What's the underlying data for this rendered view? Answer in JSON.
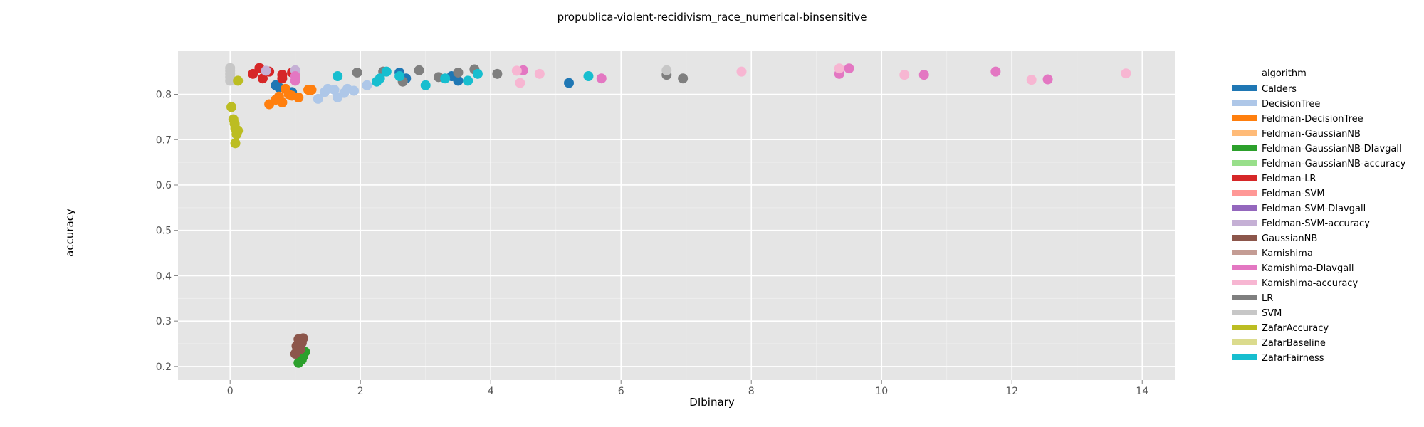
{
  "chart_data": {
    "type": "scatter",
    "title": "propublica-violent-recidivism_race_numerical-binsensitive",
    "xlabel": "DIbinary",
    "ylabel": "accuracy",
    "xlim": [
      -0.8,
      14.5
    ],
    "ylim": [
      0.17,
      0.895
    ],
    "xticks": [
      0,
      2,
      4,
      6,
      8,
      10,
      12,
      14
    ],
    "yticks": [
      0.2,
      0.3,
      0.4,
      0.5,
      0.6,
      0.7,
      0.8
    ],
    "grid": true,
    "legend_title": "algorithm",
    "legend_position": "right",
    "series": [
      {
        "name": "Calders",
        "color": "#1f77b4",
        "points": [
          [
            0.7,
            0.82
          ],
          [
            0.75,
            0.815
          ],
          [
            0.95,
            0.805
          ],
          [
            2.6,
            0.848
          ],
          [
            2.7,
            0.835
          ],
          [
            3.4,
            0.84
          ],
          [
            3.5,
            0.83
          ],
          [
            5.2,
            0.825
          ]
        ]
      },
      {
        "name": "DecisionTree",
        "color": "#aec7e8",
        "points": [
          [
            1.35,
            0.79
          ],
          [
            1.45,
            0.805
          ],
          [
            1.5,
            0.812
          ],
          [
            1.6,
            0.81
          ],
          [
            1.65,
            0.793
          ],
          [
            1.75,
            0.803
          ],
          [
            1.8,
            0.812
          ],
          [
            1.9,
            0.808
          ],
          [
            2.1,
            0.82
          ]
        ]
      },
      {
        "name": "Feldman-DecisionTree",
        "color": "#ff7f0e",
        "points": [
          [
            0.6,
            0.778
          ],
          [
            0.7,
            0.788
          ],
          [
            0.75,
            0.795
          ],
          [
            0.8,
            0.782
          ],
          [
            0.85,
            0.812
          ],
          [
            0.9,
            0.8
          ],
          [
            0.95,
            0.797
          ],
          [
            1.05,
            0.793
          ],
          [
            1.2,
            0.81
          ],
          [
            1.25,
            0.81
          ]
        ]
      },
      {
        "name": "Feldman-GaussianNB",
        "color": "#ffbb78",
        "points": []
      },
      {
        "name": "Feldman-GaussianNB-DIavgall",
        "color": "#2ca02c",
        "points": [
          [
            1.05,
            0.208
          ],
          [
            1.1,
            0.215
          ],
          [
            1.12,
            0.222
          ],
          [
            1.15,
            0.232
          ]
        ]
      },
      {
        "name": "Feldman-GaussianNB-accuracy",
        "color": "#98df8a",
        "points": []
      },
      {
        "name": "Feldman-LR",
        "color": "#d62728",
        "points": [
          [
            0.35,
            0.845
          ],
          [
            0.45,
            0.858
          ],
          [
            0.5,
            0.835
          ],
          [
            0.6,
            0.85
          ],
          [
            0.8,
            0.843
          ],
          [
            0.8,
            0.835
          ],
          [
            0.95,
            0.848
          ],
          [
            1.0,
            0.84
          ]
        ]
      },
      {
        "name": "Feldman-SVM",
        "color": "#ff9896",
        "points": []
      },
      {
        "name": "Feldman-SVM-DIavgall",
        "color": "#9467bd",
        "points": []
      },
      {
        "name": "Feldman-SVM-accuracy",
        "color": "#c5b0d5",
        "points": [
          [
            0.55,
            0.852
          ],
          [
            1.0,
            0.853
          ]
        ]
      },
      {
        "name": "GaussianNB",
        "color": "#8c564b",
        "points": [
          [
            1.0,
            0.228
          ],
          [
            1.02,
            0.245
          ],
          [
            1.05,
            0.26
          ],
          [
            1.08,
            0.238
          ],
          [
            1.1,
            0.252
          ],
          [
            1.12,
            0.262
          ]
        ]
      },
      {
        "name": "Kamishima",
        "color": "#c49c94",
        "points": []
      },
      {
        "name": "Kamishima-DIavgall",
        "color": "#e377c2",
        "points": [
          [
            1.0,
            0.83
          ],
          [
            1.0,
            0.84
          ],
          [
            4.5,
            0.853
          ],
          [
            5.7,
            0.835
          ],
          [
            9.35,
            0.845
          ],
          [
            9.5,
            0.857
          ],
          [
            10.65,
            0.843
          ],
          [
            11.75,
            0.85
          ],
          [
            12.55,
            0.833
          ]
        ]
      },
      {
        "name": "Kamishima-accuracy",
        "color": "#f7b6d2",
        "points": [
          [
            4.4,
            0.852
          ],
          [
            4.45,
            0.825
          ],
          [
            4.75,
            0.845
          ],
          [
            7.85,
            0.85
          ],
          [
            9.35,
            0.857
          ],
          [
            10.35,
            0.843
          ],
          [
            12.3,
            0.832
          ],
          [
            13.75,
            0.846
          ]
        ]
      },
      {
        "name": "LR",
        "color": "#7f7f7f",
        "points": [
          [
            1.95,
            0.848
          ],
          [
            2.35,
            0.85
          ],
          [
            2.65,
            0.828
          ],
          [
            2.9,
            0.853
          ],
          [
            3.2,
            0.838
          ],
          [
            3.5,
            0.848
          ],
          [
            3.75,
            0.855
          ],
          [
            4.1,
            0.845
          ],
          [
            6.7,
            0.843
          ],
          [
            6.95,
            0.835
          ]
        ]
      },
      {
        "name": "SVM",
        "color": "#c7c7c7",
        "points": [
          [
            0.0,
            0.83
          ],
          [
            0.0,
            0.838
          ],
          [
            0.0,
            0.845
          ],
          [
            0.0,
            0.852
          ],
          [
            0.0,
            0.858
          ],
          [
            6.7,
            0.853
          ]
        ]
      },
      {
        "name": "ZafarAccuracy",
        "color": "#bcbd22",
        "points": [
          [
            0.02,
            0.772
          ],
          [
            0.05,
            0.745
          ],
          [
            0.07,
            0.735
          ],
          [
            0.08,
            0.725
          ],
          [
            0.1,
            0.712
          ],
          [
            0.12,
            0.72
          ],
          [
            0.08,
            0.692
          ],
          [
            0.12,
            0.83
          ]
        ]
      },
      {
        "name": "ZafarBaseline",
        "color": "#dbdb8d",
        "points": []
      },
      {
        "name": "ZafarFairness",
        "color": "#17becf",
        "points": [
          [
            1.65,
            0.84
          ],
          [
            2.25,
            0.828
          ],
          [
            2.3,
            0.835
          ],
          [
            2.4,
            0.85
          ],
          [
            2.6,
            0.84
          ],
          [
            3.0,
            0.82
          ],
          [
            3.3,
            0.835
          ],
          [
            3.65,
            0.83
          ],
          [
            3.8,
            0.845
          ],
          [
            5.5,
            0.84
          ]
        ]
      }
    ]
  }
}
